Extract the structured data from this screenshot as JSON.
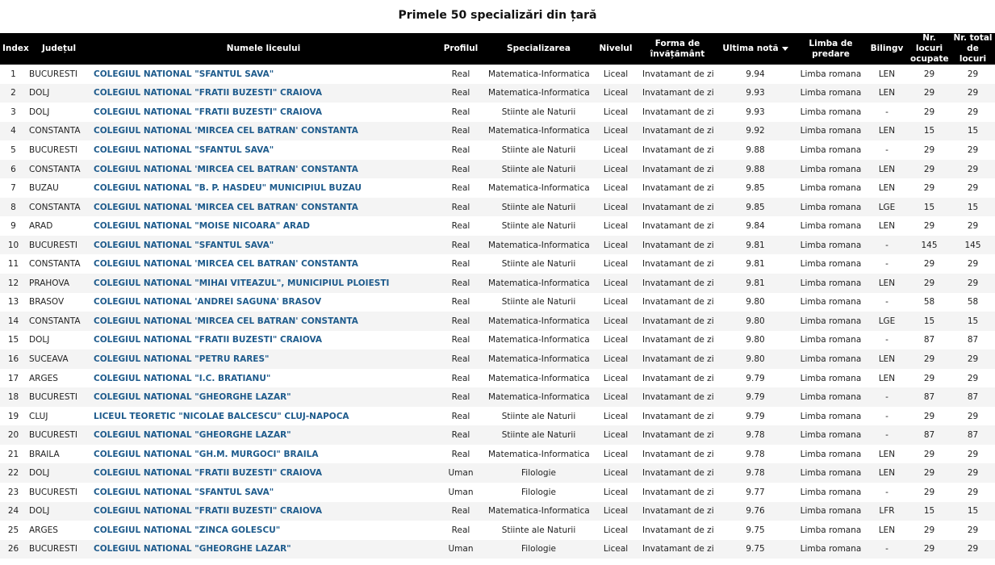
{
  "header": {
    "title": "Primele 50 specializări din țară"
  },
  "table": {
    "headers": [
      "Index",
      "Județul",
      "Numele liceului",
      "Profilul",
      "Specializarea",
      "Nivelul",
      "Forma de învățământ",
      "Ultima notă",
      "Limba de predare",
      "Bilingv",
      "Nr. locuri ocupate",
      "Nr. total de locuri"
    ],
    "rows": [
      [
        "1",
        "BUCURESTI",
        "COLEGIUL NATIONAL \"SFANTUL SAVA\"",
        "Real",
        "Matematica-Informatica",
        "Liceal",
        "Invatamant de zi",
        "9.94",
        "Limba romana",
        "LEN",
        "29",
        "29"
      ],
      [
        "2",
        "DOLJ",
        "COLEGIUL NATIONAL \"FRATII BUZESTI\" CRAIOVA",
        "Real",
        "Matematica-Informatica",
        "Liceal",
        "Invatamant de zi",
        "9.93",
        "Limba romana",
        "LEN",
        "29",
        "29"
      ],
      [
        "3",
        "DOLJ",
        "COLEGIUL NATIONAL \"FRATII BUZESTI\" CRAIOVA",
        "Real",
        "Stiinte ale Naturii",
        "Liceal",
        "Invatamant de zi",
        "9.93",
        "Limba romana",
        "-",
        "29",
        "29"
      ],
      [
        "4",
        "CONSTANTA",
        "COLEGIUL NATIONAL 'MIRCEA CEL BATRAN' CONSTANTA",
        "Real",
        "Matematica-Informatica",
        "Liceal",
        "Invatamant de zi",
        "9.92",
        "Limba romana",
        "LEN",
        "15",
        "15"
      ],
      [
        "5",
        "BUCURESTI",
        "COLEGIUL NATIONAL \"SFANTUL SAVA\"",
        "Real",
        "Stiinte ale Naturii",
        "Liceal",
        "Invatamant de zi",
        "9.88",
        "Limba romana",
        "-",
        "29",
        "29"
      ],
      [
        "6",
        "CONSTANTA",
        "COLEGIUL NATIONAL 'MIRCEA CEL BATRAN' CONSTANTA",
        "Real",
        "Stiinte ale Naturii",
        "Liceal",
        "Invatamant de zi",
        "9.88",
        "Limba romana",
        "LEN",
        "29",
        "29"
      ],
      [
        "7",
        "BUZAU",
        "COLEGIUL NATIONAL \"B. P. HASDEU\" MUNICIPIUL BUZAU",
        "Real",
        "Matematica-Informatica",
        "Liceal",
        "Invatamant de zi",
        "9.85",
        "Limba romana",
        "LEN",
        "29",
        "29"
      ],
      [
        "8",
        "CONSTANTA",
        "COLEGIUL NATIONAL 'MIRCEA CEL BATRAN' CONSTANTA",
        "Real",
        "Stiinte ale Naturii",
        "Liceal",
        "Invatamant de zi",
        "9.85",
        "Limba romana",
        "LGE",
        "15",
        "15"
      ],
      [
        "9",
        "ARAD",
        "COLEGIUL NATIONAL \"MOISE NICOARA\" ARAD",
        "Real",
        "Stiinte ale Naturii",
        "Liceal",
        "Invatamant de zi",
        "9.84",
        "Limba romana",
        "LEN",
        "29",
        "29"
      ],
      [
        "10",
        "BUCURESTI",
        "COLEGIUL NATIONAL \"SFANTUL SAVA\"",
        "Real",
        "Matematica-Informatica",
        "Liceal",
        "Invatamant de zi",
        "9.81",
        "Limba romana",
        "-",
        "145",
        "145"
      ],
      [
        "11",
        "CONSTANTA",
        "COLEGIUL NATIONAL 'MIRCEA CEL BATRAN' CONSTANTA",
        "Real",
        "Stiinte ale Naturii",
        "Liceal",
        "Invatamant de zi",
        "9.81",
        "Limba romana",
        "-",
        "29",
        "29"
      ],
      [
        "12",
        "PRAHOVA",
        "COLEGIUL NATIONAL \"MIHAI VITEAZUL\", MUNICIPIUL PLOIESTI",
        "Real",
        "Matematica-Informatica",
        "Liceal",
        "Invatamant de zi",
        "9.81",
        "Limba romana",
        "LEN",
        "29",
        "29"
      ],
      [
        "13",
        "BRASOV",
        "COLEGIUL NATIONAL 'ANDREI SAGUNA' BRASOV",
        "Real",
        "Stiinte ale Naturii",
        "Liceal",
        "Invatamant de zi",
        "9.80",
        "Limba romana",
        "-",
        "58",
        "58"
      ],
      [
        "14",
        "CONSTANTA",
        "COLEGIUL NATIONAL 'MIRCEA CEL BATRAN' CONSTANTA",
        "Real",
        "Matematica-Informatica",
        "Liceal",
        "Invatamant de zi",
        "9.80",
        "Limba romana",
        "LGE",
        "15",
        "15"
      ],
      [
        "15",
        "DOLJ",
        "COLEGIUL NATIONAL \"FRATII BUZESTI\" CRAIOVA",
        "Real",
        "Matematica-Informatica",
        "Liceal",
        "Invatamant de zi",
        "9.80",
        "Limba romana",
        "-",
        "87",
        "87"
      ],
      [
        "16",
        "SUCEAVA",
        "COLEGIUL NATIONAL \"PETRU RARES\"",
        "Real",
        "Matematica-Informatica",
        "Liceal",
        "Invatamant de zi",
        "9.80",
        "Limba romana",
        "LEN",
        "29",
        "29"
      ],
      [
        "17",
        "ARGES",
        "COLEGIUL NATIONAL \"I.C. BRATIANU\"",
        "Real",
        "Matematica-Informatica",
        "Liceal",
        "Invatamant de zi",
        "9.79",
        "Limba romana",
        "LEN",
        "29",
        "29"
      ],
      [
        "18",
        "BUCURESTI",
        "COLEGIUL NATIONAL \"GHEORGHE LAZAR\"",
        "Real",
        "Matematica-Informatica",
        "Liceal",
        "Invatamant de zi",
        "9.79",
        "Limba romana",
        "-",
        "87",
        "87"
      ],
      [
        "19",
        "CLUJ",
        "LICEUL TEORETIC \"NICOLAE BALCESCU\" CLUJ-NAPOCA",
        "Real",
        "Stiinte ale Naturii",
        "Liceal",
        "Invatamant de zi",
        "9.79",
        "Limba romana",
        "-",
        "29",
        "29"
      ],
      [
        "20",
        "BUCURESTI",
        "COLEGIUL NATIONAL \"GHEORGHE LAZAR\"",
        "Real",
        "Stiinte ale Naturii",
        "Liceal",
        "Invatamant de zi",
        "9.78",
        "Limba romana",
        "-",
        "87",
        "87"
      ],
      [
        "21",
        "BRAILA",
        "COLEGIUL NATIONAL \"GH.M. MURGOCI\" BRAILA",
        "Real",
        "Matematica-Informatica",
        "Liceal",
        "Invatamant de zi",
        "9.78",
        "Limba romana",
        "LEN",
        "29",
        "29"
      ],
      [
        "22",
        "DOLJ",
        "COLEGIUL NATIONAL \"FRATII BUZESTI\" CRAIOVA",
        "Uman",
        "Filologie",
        "Liceal",
        "Invatamant de zi",
        "9.78",
        "Limba romana",
        "LEN",
        "29",
        "29"
      ],
      [
        "23",
        "BUCURESTI",
        "COLEGIUL NATIONAL \"SFANTUL SAVA\"",
        "Uman",
        "Filologie",
        "Liceal",
        "Invatamant de zi",
        "9.77",
        "Limba romana",
        "-",
        "29",
        "29"
      ],
      [
        "24",
        "DOLJ",
        "COLEGIUL NATIONAL \"FRATII BUZESTI\" CRAIOVA",
        "Real",
        "Matematica-Informatica",
        "Liceal",
        "Invatamant de zi",
        "9.76",
        "Limba romana",
        "LFR",
        "15",
        "15"
      ],
      [
        "25",
        "ARGES",
        "COLEGIUL NATIONAL \"ZINCA GOLESCU\"",
        "Real",
        "Stiinte ale Naturii",
        "Liceal",
        "Invatamant de zi",
        "9.75",
        "Limba romana",
        "LEN",
        "29",
        "29"
      ],
      [
        "26",
        "BUCURESTI",
        "COLEGIUL NATIONAL \"GHEORGHE LAZAR\"",
        "Uman",
        "Filologie",
        "Liceal",
        "Invatamant de zi",
        "9.75",
        "Limba romana",
        "-",
        "29",
        "29"
      ]
    ]
  }
}
